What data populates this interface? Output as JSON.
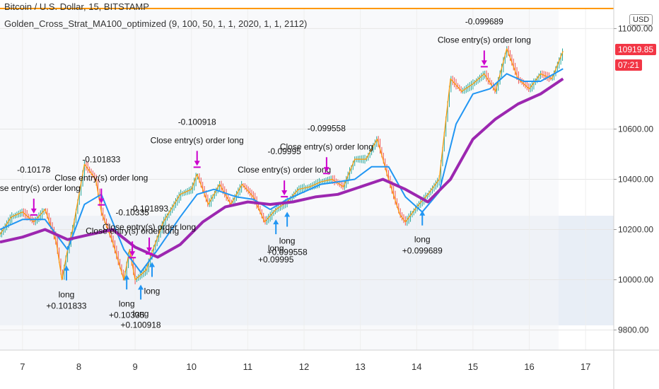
{
  "header": {
    "symbol": "Bitcoin / U.S. Dollar, 15, BITSTAMP",
    "strategy": "Golden_Cross_Strat_MA100_optimized (9, 100, 50, 1, 1, 2020, 1, 1, 2112)",
    "currency": "USD",
    "price_label": "10919.85",
    "countdown_label": "07:21",
    "price_label_color": "#f23645"
  },
  "colors": {
    "ma_long": "#9c27b0",
    "ma_fast": "#2196f3",
    "price": "#ff9800",
    "up_candle": "#26a69a",
    "down_candle": "#ef5350",
    "entry_arrow": "#2196f3",
    "exit_arrow": "#cc00cc",
    "orange_line": "#ff9800",
    "band_fill": "#e8eef6"
  },
  "chart_data": {
    "type": "line",
    "x_ticks": [
      "7",
      "8",
      "9",
      "10",
      "11",
      "12",
      "13",
      "14",
      "15",
      "16",
      "17"
    ],
    "y_ticks": [
      9800,
      10000,
      10200,
      10400,
      10600,
      11000
    ],
    "y_tick_labels": [
      "9800.00",
      "10000.00",
      "10200.00",
      "10400.00",
      "10600.00",
      "11000.00"
    ],
    "ylim": [
      9720,
      11080
    ],
    "xlim": [
      6.6,
      17.5
    ],
    "grid": true,
    "series": [
      {
        "key": "price",
        "x": [
          6.6,
          6.8,
          7.0,
          7.2,
          7.4,
          7.6,
          7.7,
          7.8,
          7.9,
          8.1,
          8.3,
          8.4,
          8.6,
          8.8,
          8.9,
          9.0,
          9.1,
          9.2,
          9.3,
          9.5,
          9.8,
          10.0,
          10.1,
          10.3,
          10.5,
          10.7,
          10.9,
          11.1,
          11.3,
          11.5,
          11.7,
          11.9,
          12.1,
          12.3,
          12.5,
          12.7,
          12.9,
          13.1,
          13.3,
          13.5,
          13.7,
          13.8,
          14.0,
          14.2,
          14.4,
          14.6,
          14.8,
          15.0,
          15.2,
          15.4,
          15.6,
          15.8,
          16.0,
          16.2,
          16.4,
          16.6
        ],
        "y": [
          10180,
          10250,
          10270,
          10230,
          10280,
          10150,
          10000,
          10120,
          10210,
          10460,
          10400,
          10270,
          10150,
          10000,
          10120,
          10000,
          10020,
          10040,
          10110,
          10230,
          10340,
          10360,
          10420,
          10300,
          10380,
          10300,
          10380,
          10330,
          10230,
          10280,
          10310,
          10360,
          10370,
          10390,
          10400,
          10370,
          10480,
          10480,
          10560,
          10400,
          10260,
          10230,
          10290,
          10340,
          10400,
          10800,
          10750,
          10780,
          10820,
          10750,
          10920,
          10800,
          10760,
          10820,
          10800,
          10910
        ]
      },
      {
        "key": "ma_fast",
        "x": [
          6.6,
          7.0,
          7.4,
          7.8,
          8.1,
          8.4,
          8.8,
          9.1,
          9.4,
          9.8,
          10.1,
          10.4,
          10.8,
          11.1,
          11.4,
          11.7,
          12.0,
          12.3,
          12.6,
          12.9,
          13.2,
          13.5,
          13.8,
          14.1,
          14.4,
          14.7,
          15.0,
          15.3,
          15.6,
          15.9,
          16.2,
          16.6
        ],
        "y": [
          10200,
          10240,
          10240,
          10120,
          10300,
          10340,
          10120,
          10030,
          10120,
          10250,
          10340,
          10360,
          10330,
          10320,
          10280,
          10320,
          10350,
          10380,
          10390,
          10400,
          10450,
          10450,
          10330,
          10270,
          10350,
          10620,
          10740,
          10760,
          10820,
          10790,
          10790,
          10840
        ]
      },
      {
        "key": "ma_long",
        "x": [
          6.6,
          7.0,
          7.4,
          7.8,
          8.2,
          8.6,
          9.0,
          9.4,
          9.8,
          10.2,
          10.6,
          11.0,
          11.4,
          11.8,
          12.2,
          12.6,
          13.0,
          13.4,
          13.8,
          14.2,
          14.6,
          15.0,
          15.4,
          15.8,
          16.2,
          16.6
        ],
        "y": [
          10150,
          10170,
          10200,
          10160,
          10180,
          10200,
          10130,
          10090,
          10140,
          10230,
          10290,
          10310,
          10300,
          10310,
          10330,
          10340,
          10370,
          10400,
          10360,
          10310,
          10400,
          10560,
          10640,
          10700,
          10740,
          10800
        ]
      }
    ],
    "annotations": [
      {
        "label": "long",
        "value": "+0.101833",
        "x": 7.78,
        "kind": "entry"
      },
      {
        "label": "long",
        "value": "+0.10335",
        "x": 8.85,
        "kind": "entry"
      },
      {
        "label": "long",
        "value": "+0.100918",
        "x": 9.1,
        "kind": "entry"
      },
      {
        "label": "long",
        "value": "",
        "x": 9.3,
        "kind": "entry"
      },
      {
        "label": "long",
        "value": "+0.09995",
        "x": 11.5,
        "kind": "entry"
      },
      {
        "label": "long",
        "value": "+0.099558",
        "x": 11.7,
        "kind": "entry"
      },
      {
        "label": "long",
        "value": "+0.099689",
        "x": 14.1,
        "kind": "entry"
      },
      {
        "label": "Close entry(s) order long",
        "value": "-0.10178",
        "x": 7.2,
        "kind": "exit"
      },
      {
        "label": "Close entry(s) order long",
        "value": "-0.101833",
        "x": 8.4,
        "kind": "exit"
      },
      {
        "label": "Close entry(s) order long",
        "value": "-0.10335",
        "x": 8.95,
        "kind": "exit"
      },
      {
        "label": "Close entry(s) order long",
        "value": "-0.101893",
        "x": 9.25,
        "kind": "exit"
      },
      {
        "label": "Close entry(s) order long",
        "value": "-0.100918",
        "x": 10.1,
        "kind": "exit"
      },
      {
        "label": "Close entry(s) order long",
        "value": "-0.09995",
        "x": 11.65,
        "kind": "exit"
      },
      {
        "label": "Close entry(s) order long",
        "value": "-0.099558",
        "x": 12.4,
        "kind": "exit"
      },
      {
        "label": "Close entry(s) order long",
        "value": "-0.099689",
        "x": 15.2,
        "kind": "exit"
      }
    ]
  }
}
